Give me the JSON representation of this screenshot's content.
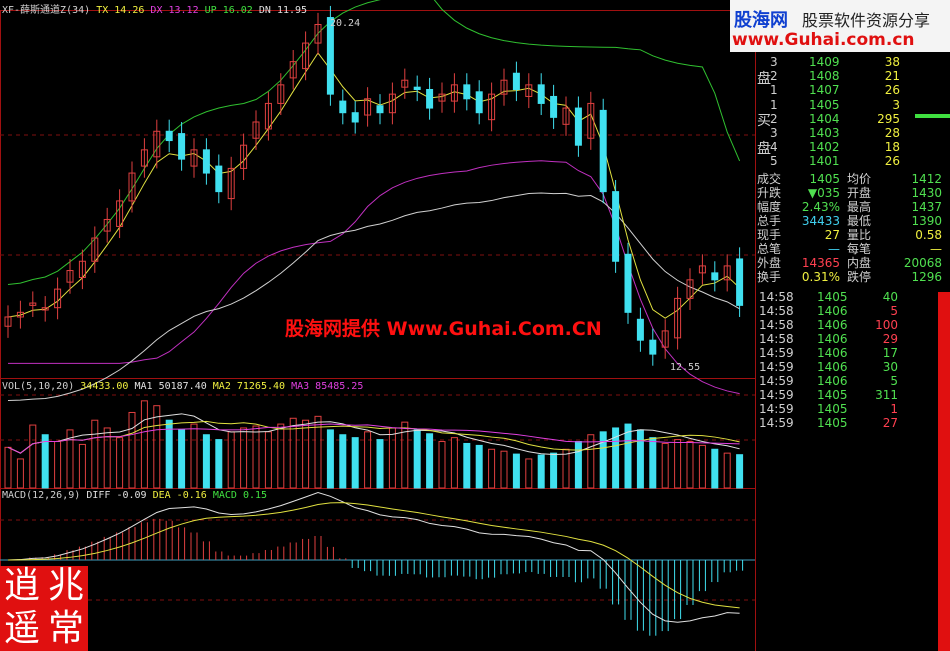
{
  "chart_data": {
    "type": "candlestick",
    "main_indicator": {
      "label": "XF-薛斯通道Z(34)",
      "items": [
        {
          "name": "TX",
          "value": "14.26",
          "color": "#f0f040"
        },
        {
          "name": "DX",
          "value": "13.12",
          "color": "#e040e0"
        },
        {
          "name": "UP",
          "value": "16.02",
          "color": "#40e040"
        },
        {
          "name": "DN",
          "value": "11.95",
          "color": "#e0e0e0"
        }
      ]
    },
    "high_label": "20.24",
    "low_label": "12.55",
    "ylim": [
      12.55,
      20.24
    ],
    "close": [
      13.8,
      13.9,
      14.1,
      14.0,
      14.4,
      14.8,
      15.0,
      15.5,
      15.9,
      16.3,
      16.9,
      17.4,
      17.8,
      17.6,
      17.2,
      17.4,
      16.9,
      16.5,
      17.0,
      17.5,
      18.0,
      18.4,
      18.8,
      19.3,
      19.7,
      20.1,
      18.6,
      18.2,
      18.0,
      18.5,
      18.2,
      18.6,
      18.9,
      18.7,
      18.3,
      18.6,
      18.8,
      18.5,
      18.2,
      18.6,
      18.9,
      18.7,
      18.8,
      18.4,
      18.1,
      18.3,
      17.5,
      18.4,
      16.5,
      15.0,
      13.9,
      13.3,
      13.0,
      13.5,
      14.2,
      14.6,
      14.9,
      14.6,
      14.9,
      14.05
    ],
    "volume": [
      42,
      30,
      65,
      55,
      48,
      60,
      45,
      70,
      62,
      52,
      78,
      90,
      85,
      70,
      60,
      66,
      55,
      50,
      58,
      62,
      64,
      58,
      66,
      72,
      70,
      74,
      60,
      55,
      52,
      58,
      50,
      62,
      68,
      60,
      56,
      48,
      52,
      46,
      44,
      40,
      38,
      35,
      30,
      34,
      36,
      40,
      48,
      55,
      58,
      62,
      66,
      60,
      52,
      46,
      50,
      48,
      44,
      40,
      36,
      34.4
    ],
    "volume_indicator": {
      "label": "VOL(5,10,20)",
      "value": "34433.00",
      "items": [
        {
          "name": "MA1",
          "value": "50187.40",
          "color": "#e0e0e0"
        },
        {
          "name": "MA2",
          "value": "71265.40",
          "color": "#f0f040"
        },
        {
          "name": "MA3",
          "value": "85485.25",
          "color": "#e040e0"
        }
      ]
    },
    "macd_indicator": {
      "label": "MACD(12,26,9)",
      "items": [
        {
          "name": "DIFF",
          "value": "-0.09",
          "color": "#e0e0e0"
        },
        {
          "name": "DEA",
          "value": "-0.16",
          "color": "#f0f040"
        },
        {
          "name": "MACD",
          "value": "0.15",
          "color": "#40e040"
        }
      ]
    },
    "colors": {
      "up": "#e04040",
      "down": "#40e0f0",
      "upper_band": "#30c030",
      "lower_band": "#c030c0",
      "mid": "#d0d0d0",
      "ma": "#e0e040"
    }
  },
  "watermark": "股海网提供 Www.Guhai.Com.CN",
  "logo": {
    "title": "股海网",
    "subtitle": "股票软件资源分享",
    "url": "www.Guhai.com.cn"
  },
  "seal": [
    "兆",
    "常",
    "逍",
    "遥"
  ],
  "orderbook": {
    "sell_label": "盘",
    "buy_label_1": "买",
    "buy_label_2": "盘",
    "sell": [
      {
        "lvl": "3",
        "price": "1409",
        "vol": "38"
      },
      {
        "lvl": "2",
        "price": "1408",
        "vol": "21"
      },
      {
        "lvl": "1",
        "price": "1407",
        "vol": "26"
      }
    ],
    "buy": [
      {
        "lvl": "1",
        "price": "1405",
        "vol": "3"
      },
      {
        "lvl": "2",
        "price": "1404",
        "vol": "295"
      },
      {
        "lvl": "3",
        "price": "1403",
        "vol": "28"
      },
      {
        "lvl": "4",
        "price": "1402",
        "vol": "18"
      },
      {
        "lvl": "5",
        "price": "1401",
        "vol": "26"
      }
    ]
  },
  "stats": [
    {
      "k1": "成交",
      "v1": "1405",
      "c1": "g",
      "k2": "均价",
      "v2": "1412",
      "c2": "g"
    },
    {
      "k1": "升跌",
      "v1": "▼035",
      "c1": "g",
      "k2": "开盘",
      "v2": "1430",
      "c2": "g"
    },
    {
      "k1": "幅度",
      "v1": "2.43%",
      "c1": "g",
      "k2": "最高",
      "v2": "1437",
      "c2": "g"
    },
    {
      "k1": "总手",
      "v1": "34433",
      "c1": "c",
      "k2": "最低",
      "v2": "1390",
      "c2": "g"
    },
    {
      "k1": "现手",
      "v1": "27",
      "c1": "y",
      "k2": "量比",
      "v2": "0.58",
      "c2": "y"
    },
    {
      "k1": "总笔",
      "v1": "—",
      "c1": "c",
      "k2": "每笔",
      "v2": "—",
      "c2": "y"
    },
    {
      "k1": "外盘",
      "v1": "14365",
      "c1": "r",
      "k2": "内盘",
      "v2": "20068",
      "c2": "g"
    },
    {
      "k1": "换手",
      "v1": "0.31%",
      "c1": "y",
      "k2": "跌停",
      "v2": "1296",
      "c2": "g"
    }
  ],
  "ticks": [
    {
      "t": "14:58",
      "p": "1405",
      "v": "40",
      "c": "g"
    },
    {
      "t": "14:58",
      "p": "1406",
      "v": "5",
      "c": "r"
    },
    {
      "t": "14:58",
      "p": "1406",
      "v": "100",
      "c": "r"
    },
    {
      "t": "14:58",
      "p": "1406",
      "v": "29",
      "c": "r"
    },
    {
      "t": "14:59",
      "p": "1406",
      "v": "17",
      "c": "g"
    },
    {
      "t": "14:59",
      "p": "1406",
      "v": "30",
      "c": "g"
    },
    {
      "t": "14:59",
      "p": "1406",
      "v": "5",
      "c": "g"
    },
    {
      "t": "14:59",
      "p": "1405",
      "v": "311",
      "c": "g"
    },
    {
      "t": "14:59",
      "p": "1405",
      "v": "1",
      "c": "r"
    },
    {
      "t": "14:59",
      "p": "1405",
      "v": "27",
      "c": "r"
    }
  ]
}
